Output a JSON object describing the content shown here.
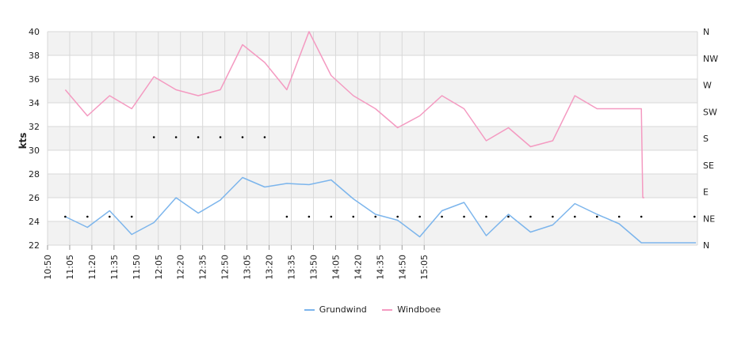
{
  "chart_data": {
    "type": "line",
    "ylabel": "kts",
    "ylim": [
      22,
      40
    ],
    "y_ticks": [
      "22",
      "24",
      "26",
      "28",
      "30",
      "32",
      "34",
      "36",
      "38",
      "40"
    ],
    "y2_ticks": [
      "N",
      "NE",
      "E",
      "SE",
      "S",
      "SW",
      "W",
      "NW",
      "N"
    ],
    "x_ticks": [
      "10:50",
      "11:05",
      "11:20",
      "11:35",
      "11:50",
      "12:05",
      "12:20",
      "12:35",
      "12:50",
      "13:05",
      "13:20",
      "13:35",
      "13:50",
      "14:05",
      "14:20",
      "14:35",
      "14:50",
      "15:05"
    ],
    "x_range_minutes": [
      650,
      1090
    ],
    "grid": true,
    "legend_position": "bottom",
    "series": [
      {
        "name": "Grundwind",
        "color": "#7cb5ec",
        "x": [
          "11:02",
          "11:17",
          "11:32",
          "11:47",
          "12:02",
          "12:17",
          "12:32",
          "12:47",
          "13:02",
          "13:17",
          "13:32",
          "13:47",
          "14:02",
          "14:17",
          "14:32",
          "14:47",
          "15:02",
          "15:17",
          "15:32",
          "15:47",
          "16:02",
          "16:17",
          "16:32",
          "16:47",
          "17:02",
          "17:17",
          "17:32",
          "17:52",
          "18:08",
          "18:09"
        ],
        "x_minutes": [
          662,
          677,
          692,
          707,
          722,
          737,
          752,
          767,
          782,
          797,
          812,
          827,
          842,
          857,
          872,
          887,
          902,
          917,
          932,
          947,
          962,
          977,
          992,
          1007,
          1022,
          1037,
          1052,
          1072,
          1088,
          1089
        ],
        "values": [
          24.4,
          23.5,
          24.9,
          22.9,
          23.9,
          26.0,
          24.7,
          25.8,
          27.7,
          26.9,
          27.2,
          27.1,
          27.5,
          25.9,
          24.6,
          24.1,
          22.7,
          24.9,
          25.6,
          22.8,
          24.6,
          23.1,
          23.7,
          25.5,
          24.6,
          23.8,
          22.2,
          22.2,
          22.2,
          22.2
        ]
      },
      {
        "name": "Windboee",
        "color": "#f49ac1",
        "x_minutes": [
          662,
          677,
          692,
          707,
          722,
          737,
          752,
          767,
          782,
          797,
          812,
          827,
          842,
          857,
          872,
          887,
          902,
          917,
          932,
          947,
          962,
          977,
          992,
          1007,
          1022,
          1037,
          1052,
          1053,
          1054
        ],
        "values": [
          35.1,
          32.9,
          34.6,
          33.5,
          36.2,
          35.1,
          34.6,
          35.1,
          38.9,
          37.4,
          35.1,
          40.0,
          36.3,
          34.6,
          33.5,
          31.9,
          32.9,
          34.6,
          33.5,
          30.8,
          31.9,
          30.3,
          30.8,
          34.6,
          33.5,
          33.5,
          33.5,
          26.0,
          26.0
        ]
      }
    ],
    "direction_markers": {
      "x_minutes": [
        662,
        677,
        692,
        707,
        722,
        737,
        752,
        767,
        782,
        797,
        812,
        827,
        842,
        857,
        872,
        887,
        902,
        917,
        932,
        947,
        962,
        977,
        992,
        1007,
        1022,
        1037,
        1052
      ],
      "values": [
        24.4,
        24.4,
        24.4,
        24.4,
        31.1,
        31.1,
        31.1,
        31.1,
        31.1,
        31.1,
        24.4,
        24.4,
        24.4,
        24.4,
        24.4,
        24.4,
        24.4,
        24.4,
        24.4,
        24.4,
        24.4,
        24.4,
        24.4,
        24.4,
        24.4,
        24.4,
        24.4
      ]
    },
    "colors": {
      "band": "#f2f2f2",
      "grid": "#d8d8d8",
      "marker": "#000000"
    }
  }
}
